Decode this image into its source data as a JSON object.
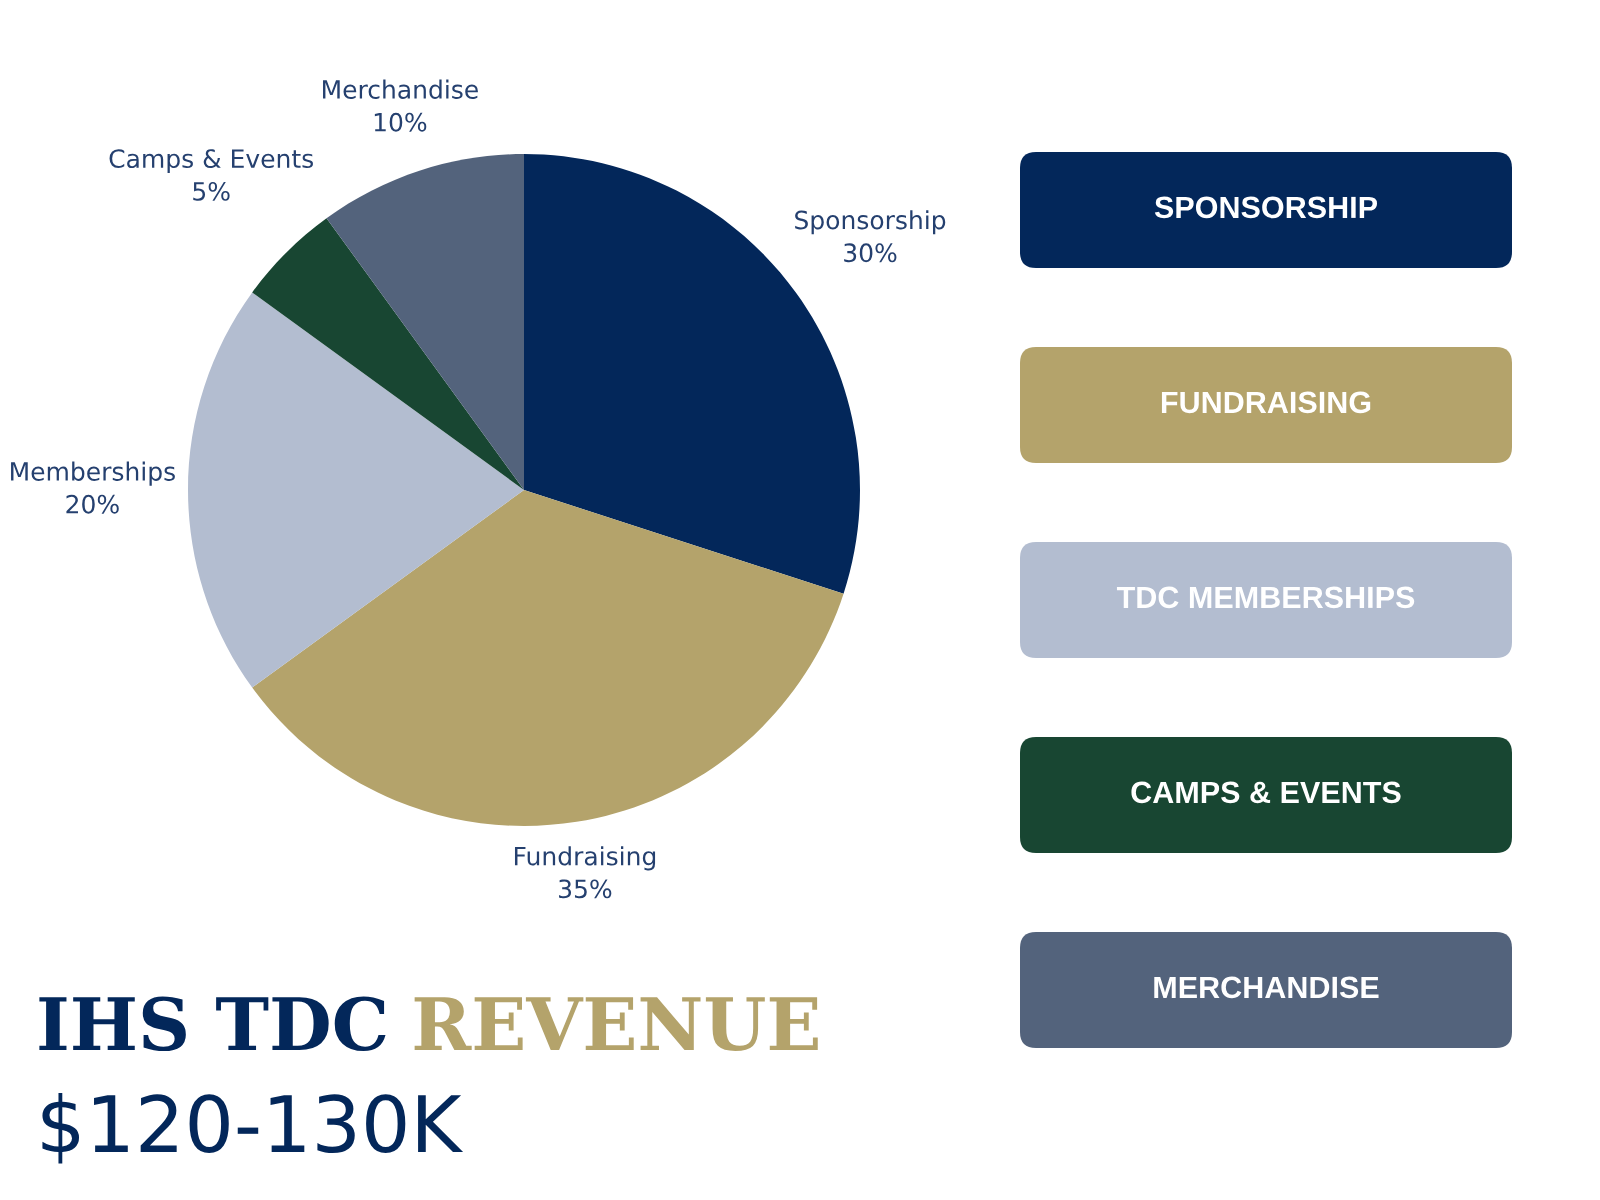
{
  "chart_data": {
    "type": "pie",
    "title": "IHS TDC REVENUE",
    "subtitle": "$120-130K",
    "categories": [
      "Sponsorship",
      "Fundraising",
      "Memberships",
      "Camps & Events",
      "Merchandise"
    ],
    "values": [
      30,
      35,
      20,
      5,
      10
    ],
    "value_labels": [
      "30%",
      "35%",
      "20%",
      "5%",
      "10%"
    ],
    "colors": [
      "#03275a",
      "#b4a36b",
      "#b3bdd0",
      "#184632",
      "#53637c"
    ],
    "annotations": [
      "SPONSORSHIP",
      "FUNDRAISING",
      "TDC MEMBERSHIPS",
      "CAMPS & EVENTS",
      "MERCHANDISE"
    ]
  }
}
